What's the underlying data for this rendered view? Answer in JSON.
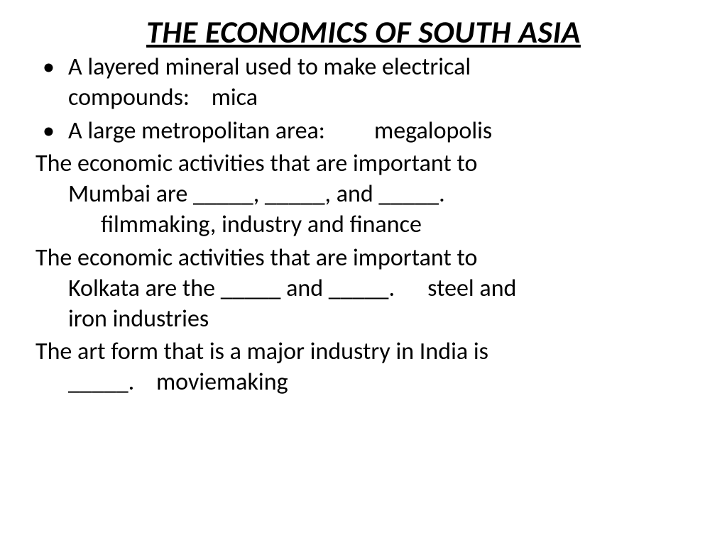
{
  "title_fontsize": 44,
  "body_fontsize": 34,
  "text_color": "#000000",
  "background_color": "#ffffff",
  "title": "THE ECONOMICS OF SOUTH ASIA",
  "bullets": [
    {
      "line1": "A layered mineral used to make electrical",
      "line2": "compounds:    mica"
    },
    {
      "line1": "A large metropolitan area:         megalopolis"
    }
  ],
  "paras": [
    {
      "l1": "The economic activities that are important to",
      "l2": "Mumbai are _____, _____, and _____.",
      "l3": "filmmaking, industry and finance"
    },
    {
      "l1": "The economic activities that are important to",
      "l2": "Kolkata are the _____ and _____.      steel and",
      "l3b": "iron industries"
    },
    {
      "l1": "The art form that is a major industry in India is",
      "l2": "_____.    moviemaking"
    }
  ]
}
